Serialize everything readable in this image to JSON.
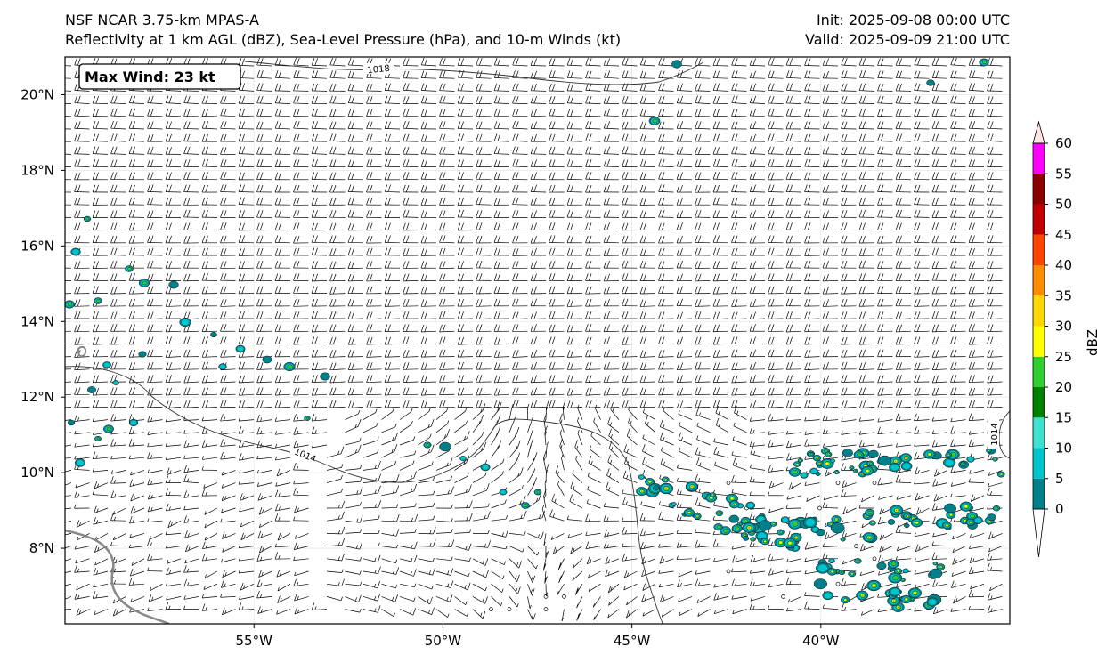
{
  "header": {
    "title_left_line1": "NSF NCAR 3.75-km MPAS-A",
    "title_left_line2": "Reflectivity at 1 km AGL (dBZ), Sea-Level Pressure (hPa), and 10-m Winds (kt)",
    "title_right_line1": "Init: 2025-09-08 00:00 UTC",
    "title_right_line2": "Valid: 2025-09-09 21:00 UTC"
  },
  "map": {
    "lon_range": [
      -60,
      -35
    ],
    "lat_range": [
      6,
      21
    ],
    "lon_ticks": [
      {
        "value": -55,
        "label": "55°W"
      },
      {
        "value": -50,
        "label": "50°W"
      },
      {
        "value": -45,
        "label": "45°W"
      },
      {
        "value": -40,
        "label": "40°W"
      }
    ],
    "lat_ticks": [
      {
        "value": 8,
        "label": "8°N"
      },
      {
        "value": 10,
        "label": "10°N"
      },
      {
        "value": 12,
        "label": "12°N"
      },
      {
        "value": 14,
        "label": "14°N"
      },
      {
        "value": 16,
        "label": "16°N"
      },
      {
        "value": 18,
        "label": "18°N"
      },
      {
        "value": 20,
        "label": "20°N"
      }
    ],
    "max_wind_label": "Max Wind: 23 kt",
    "isobar_labels": [
      "1018",
      "1014",
      "1014"
    ]
  },
  "colorbar": {
    "unit_label": "dBZ",
    "levels": [
      {
        "value": 0,
        "label": "0"
      },
      {
        "value": 5,
        "label": "5"
      },
      {
        "value": 10,
        "label": "10"
      },
      {
        "value": 15,
        "label": "15"
      },
      {
        "value": 20,
        "label": "20"
      },
      {
        "value": 25,
        "label": "25"
      },
      {
        "value": 30,
        "label": "30"
      },
      {
        "value": 35,
        "label": "35"
      },
      {
        "value": 40,
        "label": "40"
      },
      {
        "value": 45,
        "label": "45"
      },
      {
        "value": 50,
        "label": "50"
      },
      {
        "value": 55,
        "label": "55"
      },
      {
        "value": 60,
        "label": "60"
      }
    ],
    "colors": [
      "#00808a",
      "#00c4cc",
      "#40e0d0",
      "#008000",
      "#32cd32",
      "#ffff00",
      "#ffd700",
      "#ff8c00",
      "#ff4500",
      "#c00000",
      "#8b0000",
      "#ff00ff",
      "#ffe4e1"
    ]
  }
}
